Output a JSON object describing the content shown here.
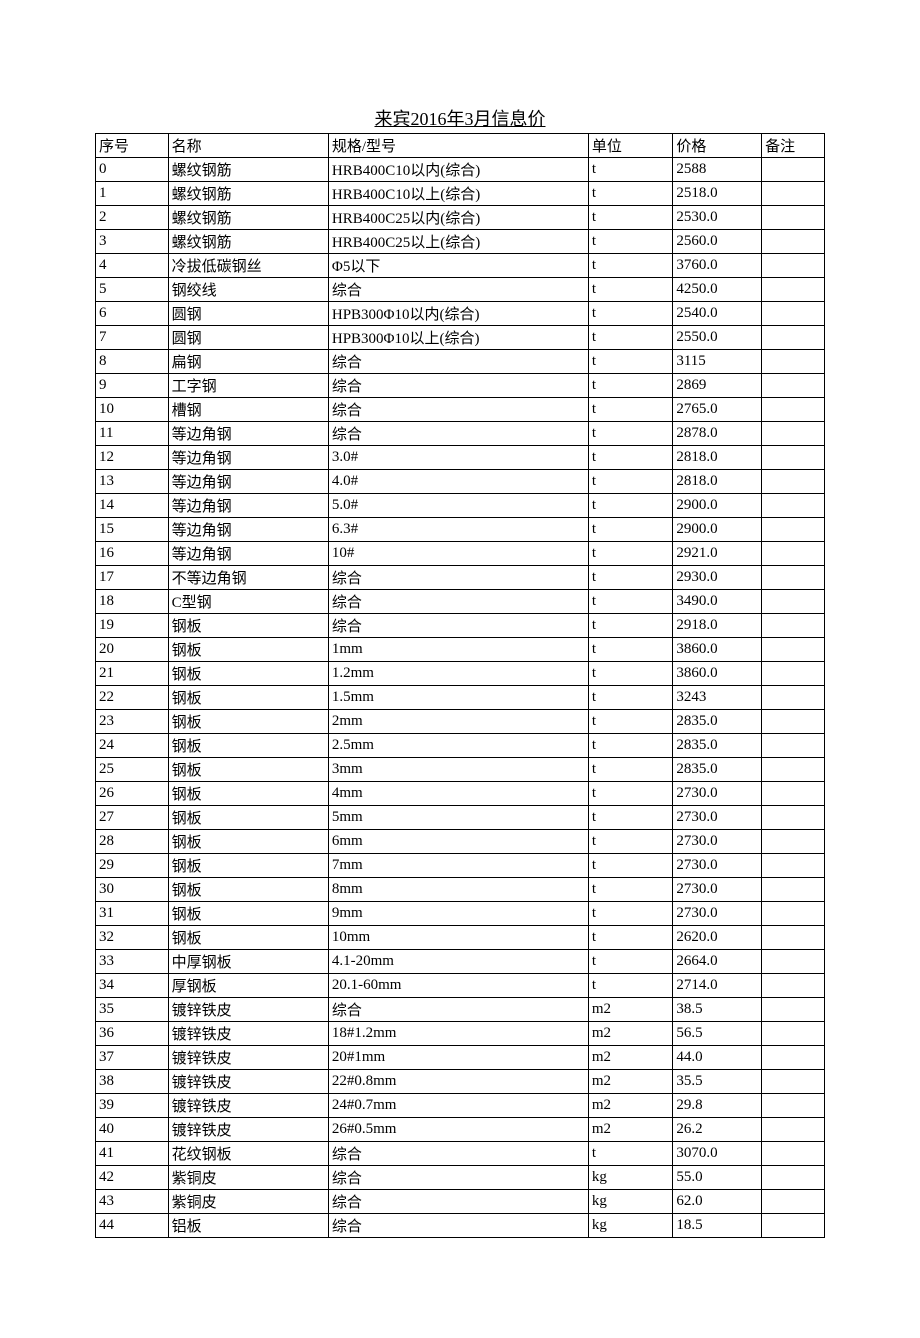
{
  "title": "来宾2016年3月信息价",
  "headers": {
    "seq": "序号",
    "name": "名称",
    "spec": "规格/型号",
    "unit": "单位",
    "price": "价格",
    "remark": "备注"
  },
  "rows": [
    {
      "seq": "0",
      "name": "螺纹钢筋",
      "spec": "HRB400C10以内(综合)",
      "unit": "t",
      "price": "2588",
      "remark": ""
    },
    {
      "seq": "1",
      "name": "螺纹钢筋",
      "spec": "HRB400C10以上(综合)",
      "unit": "t",
      "price": "2518.0",
      "remark": ""
    },
    {
      "seq": "2",
      "name": "螺纹钢筋",
      "spec": "HRB400C25以内(综合)",
      "unit": "t",
      "price": "2530.0",
      "remark": ""
    },
    {
      "seq": "3",
      "name": "螺纹钢筋",
      "spec": "HRB400C25以上(综合)",
      "unit": "t",
      "price": "2560.0",
      "remark": ""
    },
    {
      "seq": "4",
      "name": "冷拔低碳钢丝",
      "spec": "Φ5以下",
      "unit": "t",
      "price": "3760.0",
      "remark": ""
    },
    {
      "seq": "5",
      "name": "钢绞线",
      "spec": "综合",
      "unit": "t",
      "price": "4250.0",
      "remark": ""
    },
    {
      "seq": "6",
      "name": "圆钢",
      "spec": "HPB300Φ10以内(综合)",
      "unit": "t",
      "price": "2540.0",
      "remark": ""
    },
    {
      "seq": "7",
      "name": "圆钢",
      "spec": "HPB300Φ10以上(综合)",
      "unit": "t",
      "price": "2550.0",
      "remark": ""
    },
    {
      "seq": "8",
      "name": "扁钢",
      "spec": "综合",
      "unit": "t",
      "price": "3115",
      "remark": ""
    },
    {
      "seq": "9",
      "name": "工字钢",
      "spec": "综合",
      "unit": "t",
      "price": "2869",
      "remark": ""
    },
    {
      "seq": "10",
      "name": "槽钢",
      "spec": "综合",
      "unit": "t",
      "price": "2765.0",
      "remark": ""
    },
    {
      "seq": "11",
      "name": "等边角钢",
      "spec": "综合",
      "unit": "t",
      "price": "2878.0",
      "remark": ""
    },
    {
      "seq": "12",
      "name": "等边角钢",
      "spec": "3.0#",
      "unit": "t",
      "price": "2818.0",
      "remark": ""
    },
    {
      "seq": "13",
      "name": "等边角钢",
      "spec": "4.0#",
      "unit": "t",
      "price": "2818.0",
      "remark": ""
    },
    {
      "seq": "14",
      "name": "等边角钢",
      "spec": "5.0#",
      "unit": "t",
      "price": "2900.0",
      "remark": ""
    },
    {
      "seq": "15",
      "name": "等边角钢",
      "spec": "6.3#",
      "unit": "t",
      "price": "2900.0",
      "remark": ""
    },
    {
      "seq": "16",
      "name": "等边角钢",
      "spec": "10#",
      "unit": "t",
      "price": "2921.0",
      "remark": ""
    },
    {
      "seq": "17",
      "name": "不等边角钢",
      "spec": "综合",
      "unit": "t",
      "price": "2930.0",
      "remark": ""
    },
    {
      "seq": "18",
      "name": "C型钢",
      "spec": "综合",
      "unit": "t",
      "price": "3490.0",
      "remark": ""
    },
    {
      "seq": "19",
      "name": "钢板",
      "spec": "综合",
      "unit": "t",
      "price": "2918.0",
      "remark": ""
    },
    {
      "seq": "20",
      "name": "钢板",
      "spec": "1mm",
      "unit": "t",
      "price": "3860.0",
      "remark": ""
    },
    {
      "seq": "21",
      "name": "钢板",
      "spec": "1.2mm",
      "unit": "t",
      "price": "3860.0",
      "remark": ""
    },
    {
      "seq": "22",
      "name": "钢板",
      "spec": "1.5mm",
      "unit": "t",
      "price": "3243",
      "remark": ""
    },
    {
      "seq": "23",
      "name": "钢板",
      "spec": "2mm",
      "unit": "t",
      "price": "2835.0",
      "remark": ""
    },
    {
      "seq": "24",
      "name": "钢板",
      "spec": "2.5mm",
      "unit": "t",
      "price": "2835.0",
      "remark": ""
    },
    {
      "seq": "25",
      "name": "钢板",
      "spec": "3mm",
      "unit": "t",
      "price": "2835.0",
      "remark": ""
    },
    {
      "seq": "26",
      "name": "钢板",
      "spec": "4mm",
      "unit": "t",
      "price": "2730.0",
      "remark": ""
    },
    {
      "seq": "27",
      "name": "钢板",
      "spec": "5mm",
      "unit": "t",
      "price": "2730.0",
      "remark": ""
    },
    {
      "seq": "28",
      "name": "钢板",
      "spec": "6mm",
      "unit": "t",
      "price": "2730.0",
      "remark": ""
    },
    {
      "seq": "29",
      "name": "钢板",
      "spec": "7mm",
      "unit": "t",
      "price": "2730.0",
      "remark": ""
    },
    {
      "seq": "30",
      "name": "钢板",
      "spec": "8mm",
      "unit": "t",
      "price": "2730.0",
      "remark": ""
    },
    {
      "seq": "31",
      "name": "钢板",
      "spec": "9mm",
      "unit": "t",
      "price": "2730.0",
      "remark": ""
    },
    {
      "seq": "32",
      "name": "钢板",
      "spec": "10mm",
      "unit": "t",
      "price": "2620.0",
      "remark": ""
    },
    {
      "seq": "33",
      "name": "中厚钢板",
      "spec": "4.1-20mm",
      "unit": "t",
      "price": "2664.0",
      "remark": ""
    },
    {
      "seq": "34",
      "name": "厚钢板",
      "spec": "20.1-60mm",
      "unit": "t",
      "price": "2714.0",
      "remark": ""
    },
    {
      "seq": "35",
      "name": "镀锌铁皮",
      "spec": "综合",
      "unit": "m2",
      "price": "38.5",
      "remark": ""
    },
    {
      "seq": "36",
      "name": "镀锌铁皮",
      "spec": "18#1.2mm",
      "unit": "m2",
      "price": "56.5",
      "remark": ""
    },
    {
      "seq": "37",
      "name": "镀锌铁皮",
      "spec": "20#1mm",
      "unit": "m2",
      "price": "44.0",
      "remark": ""
    },
    {
      "seq": "38",
      "name": "镀锌铁皮",
      "spec": "22#0.8mm",
      "unit": "m2",
      "price": "35.5",
      "remark": ""
    },
    {
      "seq": "39",
      "name": "镀锌铁皮",
      "spec": "24#0.7mm",
      "unit": "m2",
      "price": "29.8",
      "remark": ""
    },
    {
      "seq": "40",
      "name": "镀锌铁皮",
      "spec": "26#0.5mm",
      "unit": "m2",
      "price": "26.2",
      "remark": ""
    },
    {
      "seq": "41",
      "name": "花纹钢板",
      "spec": "综合",
      "unit": "t",
      "price": "3070.0",
      "remark": ""
    },
    {
      "seq": "42",
      "name": "紫铜皮",
      "spec": "综合",
      "unit": "kg",
      "price": "55.0",
      "remark": ""
    },
    {
      "seq": "43",
      "name": "紫铜皮",
      "spec": "综合",
      "unit": "kg",
      "price": "62.0",
      "remark": ""
    },
    {
      "seq": "44",
      "name": "铝板",
      "spec": "综合",
      "unit": "kg",
      "price": "18.5",
      "remark": ""
    }
  ],
  "layout": {
    "col_widths": {
      "seq": 67,
      "name": 148,
      "spec": 240,
      "unit": 78,
      "price": 82,
      "remark": 58
    },
    "font_family": "SimSun",
    "font_size_table": 15,
    "font_size_title": 18,
    "border_color": "#000000",
    "background_color": "#ffffff"
  }
}
